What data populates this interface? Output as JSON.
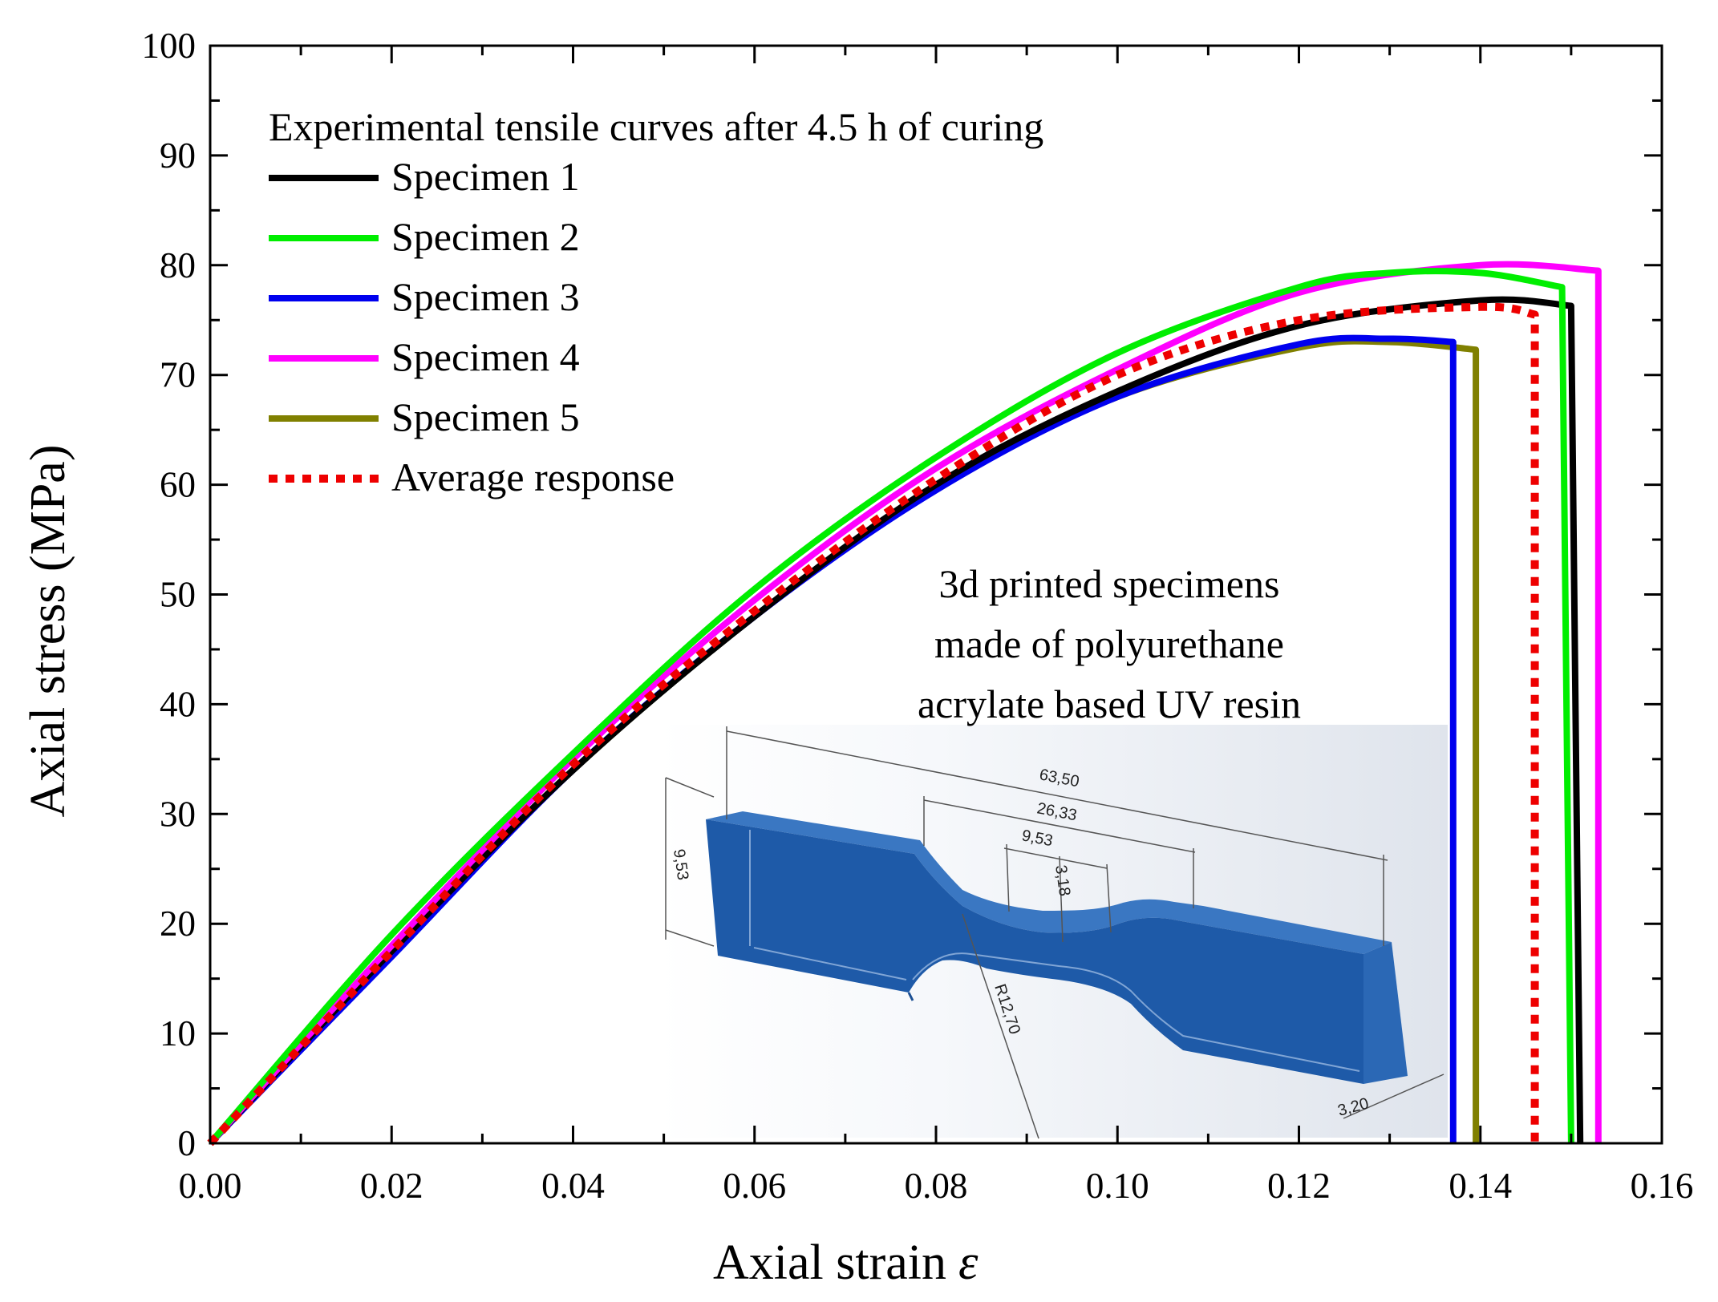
{
  "chart_data": {
    "type": "line",
    "title": "",
    "xlabel": "Axial strain",
    "xlabel_symbol": "ε",
    "ylabel": "Axial stress (MPa)",
    "xlim": [
      0,
      0.16
    ],
    "ylim": [
      0,
      100
    ],
    "x_ticks": [
      0,
      0.02,
      0.04,
      0.06,
      0.08,
      0.1,
      0.12,
      0.14,
      0.16
    ],
    "x_tick_labels": [
      "0.00",
      "0.02",
      "0.04",
      "0.06",
      "0.08",
      "0.10",
      "0.12",
      "0.14",
      "0.16"
    ],
    "y_ticks": [
      0,
      10,
      20,
      30,
      40,
      50,
      60,
      70,
      80,
      90,
      100
    ],
    "y_tick_labels": [
      "0",
      "10",
      "20",
      "30",
      "40",
      "50",
      "60",
      "70",
      "80",
      "90",
      "100"
    ],
    "legend_title": "Experimental tensile curves after 4.5 h of curing",
    "legend_position": "top-left",
    "series": [
      {
        "name": "Specimen 1",
        "color": "#000000",
        "style": "solid",
        "x": [
          0,
          0.02,
          0.04,
          0.06,
          0.08,
          0.1,
          0.12,
          0.14,
          0.15,
          0.151
        ],
        "y": [
          0,
          17.5,
          34,
          48,
          60,
          68.5,
          74.5,
          76.8,
          76.3,
          0
        ]
      },
      {
        "name": "Specimen 2",
        "color": "#00ee00",
        "style": "solid",
        "x": [
          0,
          0.02,
          0.04,
          0.06,
          0.08,
          0.1,
          0.12,
          0.13,
          0.14,
          0.149,
          0.15
        ],
        "y": [
          0,
          19,
          35.5,
          50.5,
          62.5,
          72,
          78,
          79.3,
          79.3,
          78,
          0
        ]
      },
      {
        "name": "Specimen 3",
        "color": "#0000ee",
        "style": "solid",
        "x": [
          0,
          0.02,
          0.04,
          0.06,
          0.08,
          0.1,
          0.12,
          0.13,
          0.137,
          0.137
        ],
        "y": [
          0,
          17,
          34,
          48,
          59.5,
          68,
          72.8,
          73.3,
          73,
          0
        ]
      },
      {
        "name": "Specimen 4",
        "color": "#ff00ff",
        "style": "solid",
        "x": [
          0,
          0.02,
          0.04,
          0.06,
          0.08,
          0.1,
          0.12,
          0.14,
          0.153,
          0.153
        ],
        "y": [
          0,
          18,
          35,
          49.5,
          61.5,
          70.5,
          77.5,
          80,
          79.5,
          0
        ]
      },
      {
        "name": "Specimen 5",
        "color": "#808000",
        "style": "solid",
        "x": [
          0,
          0.02,
          0.04,
          0.06,
          0.08,
          0.1,
          0.12,
          0.13,
          0.1395,
          0.1395
        ],
        "y": [
          0,
          17.5,
          34,
          48,
          59.8,
          68,
          72.5,
          73,
          72.3,
          0
        ]
      },
      {
        "name": "Average response",
        "color": "#ee0000",
        "style": "dotted",
        "x": [
          0,
          0.02,
          0.04,
          0.06,
          0.08,
          0.1,
          0.12,
          0.14,
          0.146,
          0.146
        ],
        "y": [
          0,
          17.5,
          34.5,
          48.5,
          60.5,
          70,
          75,
          76.2,
          75.5,
          0
        ]
      }
    ],
    "annotation": [
      "3d printed specimens",
      "made of polyurethane",
      "acrylate based UV resin"
    ],
    "inset_dimensions": [
      "63,50",
      "26,33",
      "9,53",
      "9,53",
      "3,18",
      "R12,70",
      "3,20"
    ]
  }
}
